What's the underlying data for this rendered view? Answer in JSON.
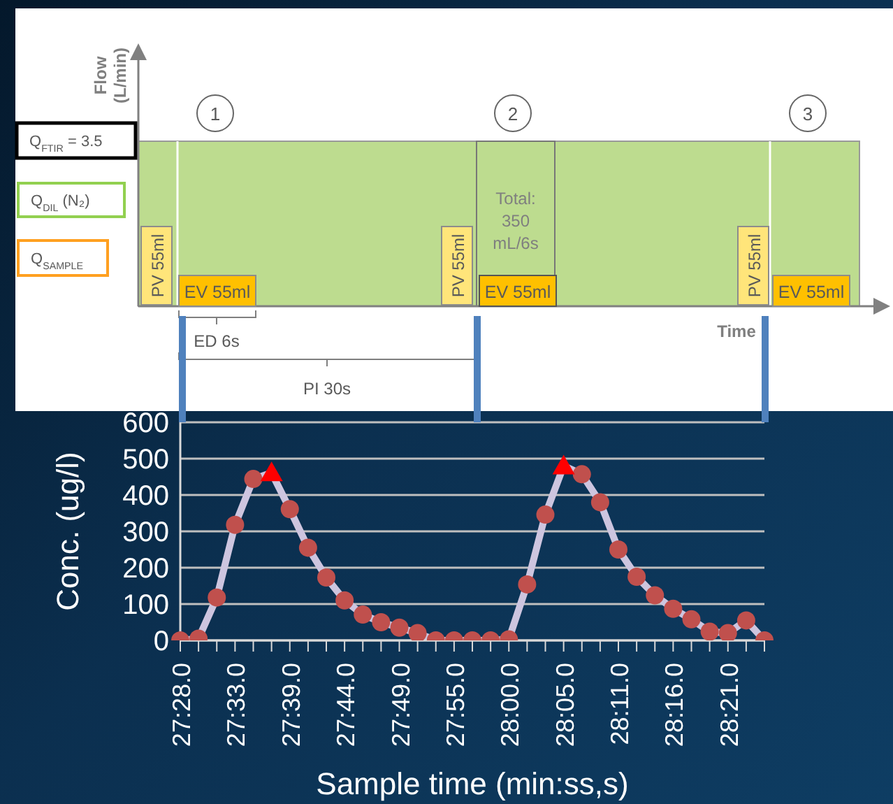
{
  "chart_data": {
    "type": "line",
    "xlabel": "Sample time (min:ss,s)",
    "ylabel": "Conc. (ug/l)",
    "categories": [
      "27:28.0",
      null,
      null,
      "27:33.0",
      null,
      null,
      "27:39.0",
      null,
      null,
      "27:44.0",
      null,
      null,
      "27:49.0",
      null,
      null,
      "27:55.0",
      null,
      null,
      "28:00.0",
      null,
      null,
      "28:05.0",
      null,
      null,
      "28:11.0",
      null,
      null,
      "28:16.0",
      null,
      null,
      "28:21.0",
      null,
      null
    ],
    "series": [
      {
        "type": "line",
        "marker": "none",
        "color": "#cdc5df",
        "values": [
          0,
          5,
          118,
          318,
          444,
          461,
          361,
          255,
          173,
          110,
          71,
          50,
          35,
          20,
          0,
          0,
          0,
          0,
          3,
          154,
          346,
          480,
          457,
          380,
          250,
          175,
          124,
          87,
          58,
          24,
          20,
          55,
          0
        ]
      },
      {
        "type": "scatter",
        "marker": "circle",
        "color": "#c0504d",
        "values": [
          0,
          5,
          118,
          318,
          444,
          null,
          361,
          255,
          173,
          110,
          71,
          50,
          35,
          20,
          0,
          0,
          0,
          0,
          3,
          154,
          346,
          null,
          457,
          380,
          250,
          175,
          124,
          87,
          58,
          24,
          20,
          55,
          0
        ]
      },
      {
        "type": "scatter",
        "marker": "triangle",
        "color": "#ff0000",
        "values": [
          null,
          null,
          null,
          null,
          null,
          461,
          null,
          null,
          null,
          null,
          null,
          null,
          null,
          null,
          null,
          null,
          null,
          null,
          null,
          null,
          null,
          480,
          null,
          null,
          null,
          null,
          null,
          null,
          null,
          null,
          null,
          null,
          null
        ]
      }
    ],
    "ylim": [
      0,
      600
    ],
    "yticks": [
      0,
      100,
      200,
      300,
      400,
      500,
      600
    ],
    "grid": "y",
    "line_style": "solid",
    "annotations": [
      "Flow (L/min)",
      "Q$_{FTIR}$ = 3.5",
      "Q$_{DIL}$ (N₂)",
      "Q$_{SAMPLE}$",
      "1",
      "2",
      "3",
      "PV 55ml",
      "PV 55ml",
      "PV 55ml",
      "EV 55ml",
      "EV 55ml",
      "EV 55ml",
      "Total: 350 mL/6s",
      "ED 6s",
      "PI 30s",
      "Time"
    ]
  }
}
